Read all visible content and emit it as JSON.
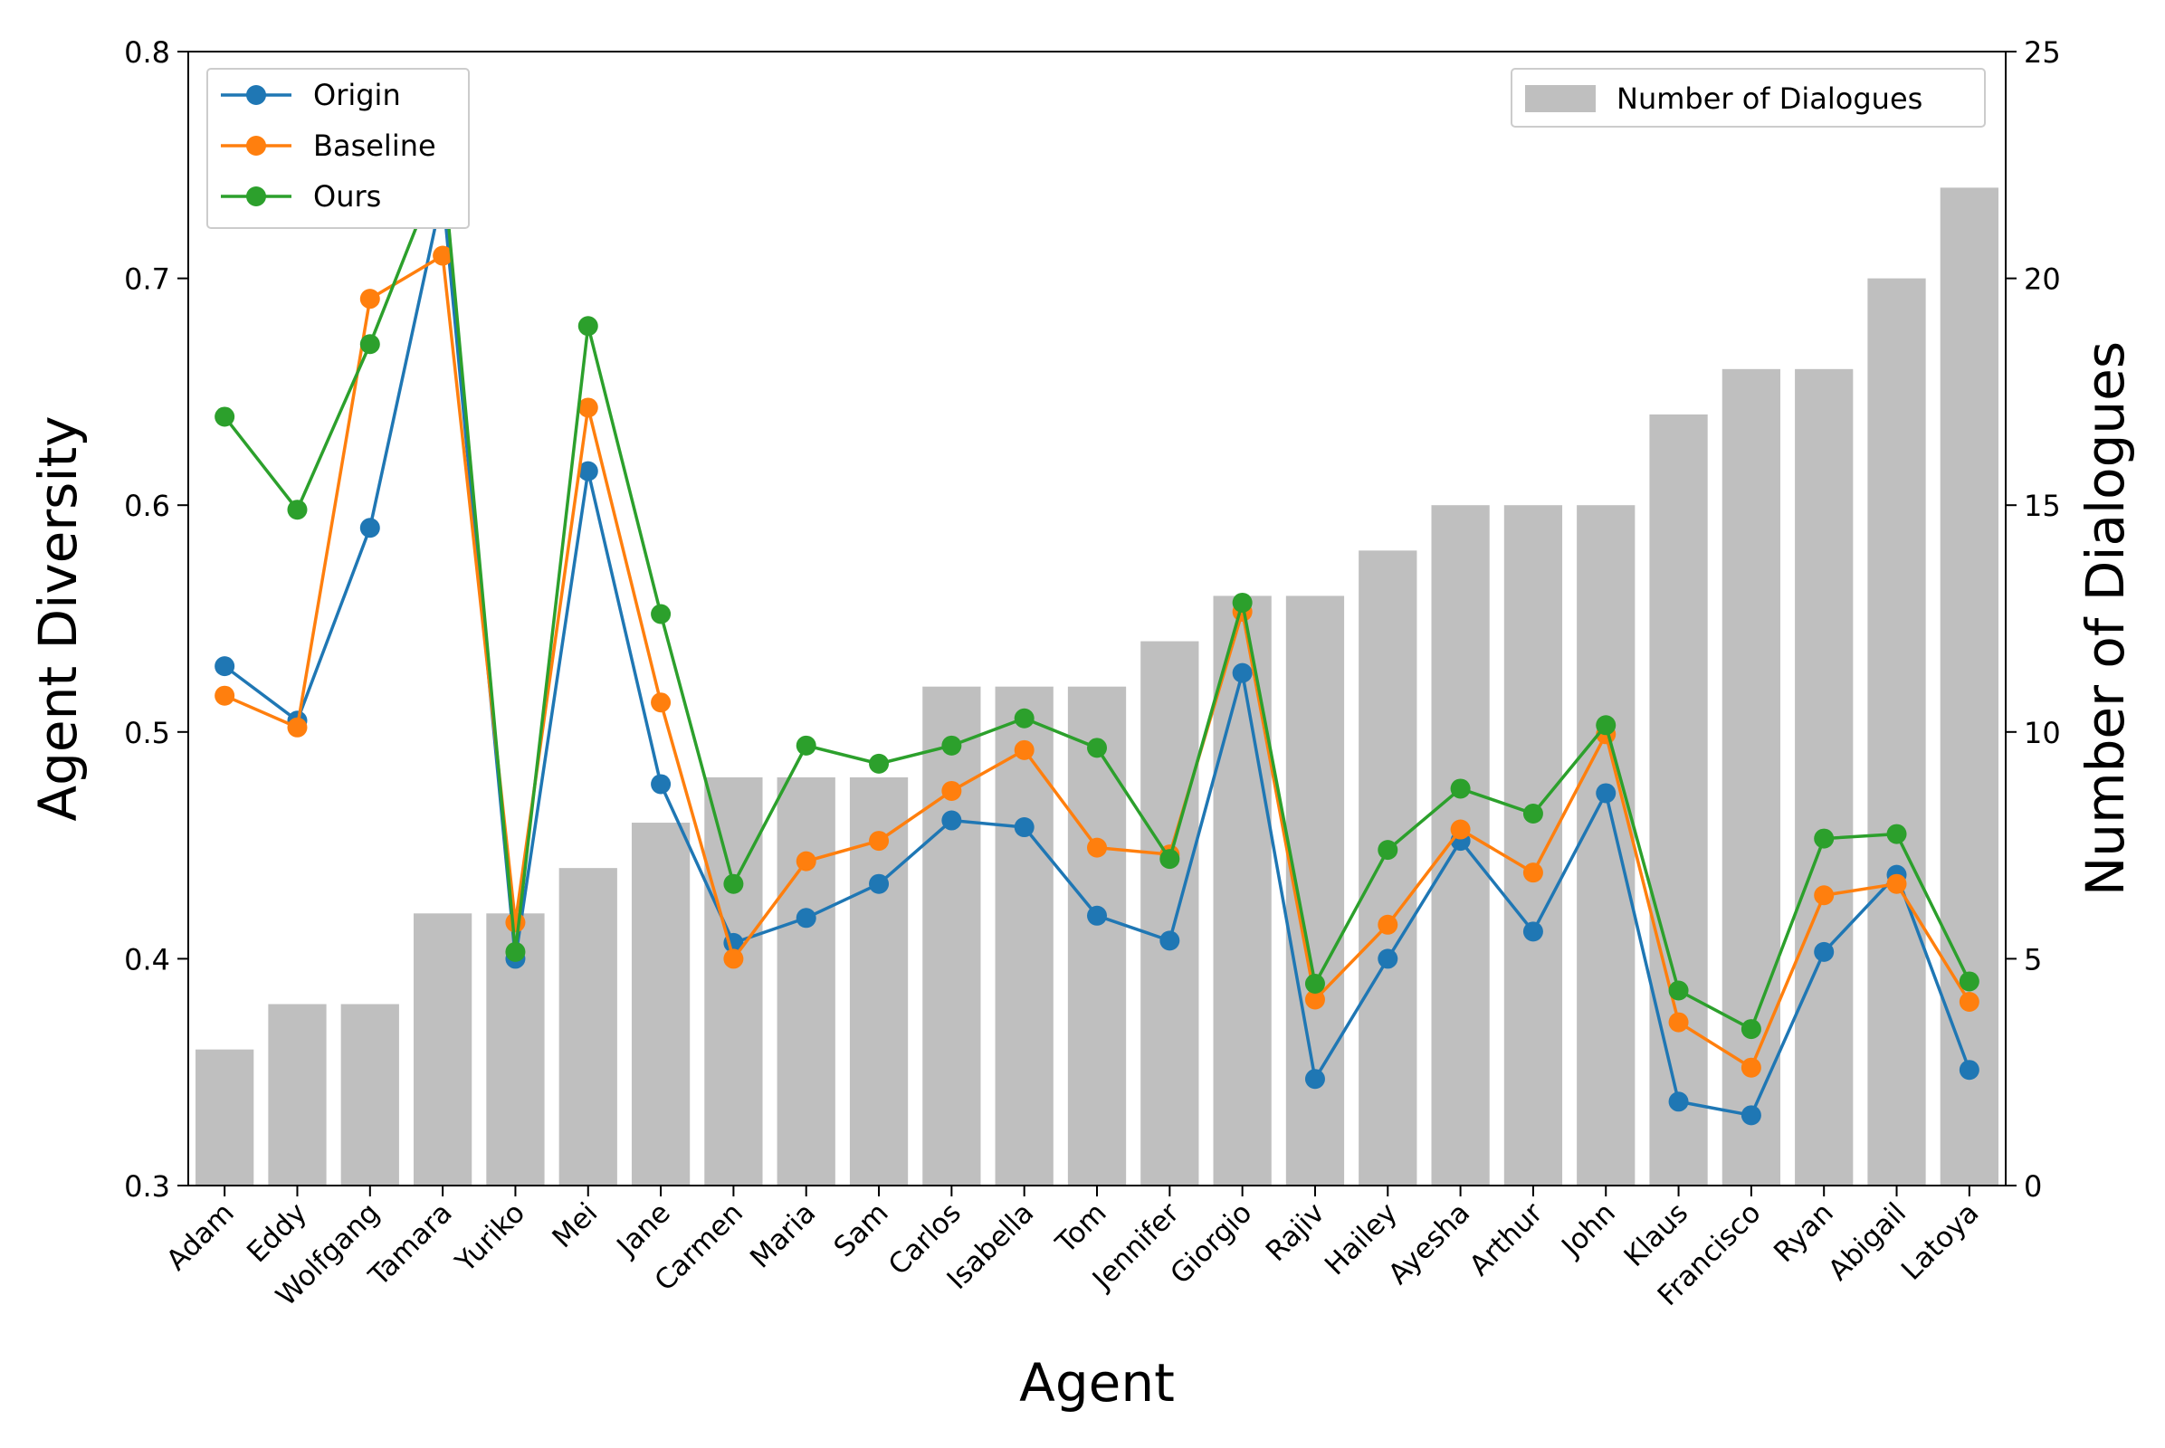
{
  "chart_data": {
    "type": "bar",
    "xlabel": "Agent",
    "ylabel_left": "Agent Diversity",
    "ylabel_right": "Number of Dialogues",
    "ylim_left": [
      0.3,
      0.8
    ],
    "ylim_right": [
      0,
      25
    ],
    "yticks_left": [
      "0.3",
      "0.4",
      "0.5",
      "0.6",
      "0.7",
      "0.8"
    ],
    "yticks_right": [
      "0",
      "5",
      "10",
      "15",
      "20",
      "25"
    ],
    "grid": false,
    "categories": [
      "Adam",
      "Eddy",
      "Wolfgang",
      "Tamara",
      "Yuriko",
      "Mei",
      "Jane",
      "Carmen",
      "Maria",
      "Sam",
      "Carlos",
      "Isabella",
      "Tom",
      "Jennifer",
      "Giorgio",
      "Rajiv",
      "Hailey",
      "Ayesha",
      "Arthur",
      "John",
      "Klaus",
      "Francisco",
      "Ryan",
      "Abigail",
      "Latoya"
    ],
    "bars": {
      "name": "Number of Dialogues",
      "axis": "right",
      "color": "#bfbfbf",
      "values": [
        3,
        4,
        4,
        6,
        6,
        7,
        8,
        9,
        9,
        9,
        11,
        11,
        11,
        12,
        13,
        13,
        14,
        15,
        15,
        15,
        17,
        18,
        18,
        20,
        22
      ]
    },
    "series": [
      {
        "name": "Origin",
        "axis": "left",
        "color": "#1f77b4",
        "values": [
          0.529,
          0.505,
          0.59,
          0.738,
          0.4,
          0.615,
          0.477,
          0.407,
          0.418,
          0.433,
          0.461,
          0.458,
          0.419,
          0.408,
          0.526,
          0.347,
          0.4,
          0.452,
          0.412,
          0.473,
          0.337,
          0.331,
          0.403,
          0.437,
          0.351
        ]
      },
      {
        "name": "Baseline",
        "axis": "left",
        "color": "#ff7f0e",
        "values": [
          0.516,
          0.502,
          0.691,
          0.71,
          0.416,
          0.643,
          0.513,
          0.4,
          0.443,
          0.452,
          0.474,
          0.492,
          0.449,
          0.446,
          0.553,
          0.382,
          0.415,
          0.457,
          0.438,
          0.499,
          0.372,
          0.352,
          0.428,
          0.433,
          0.381
        ]
      },
      {
        "name": "Ours",
        "axis": "left",
        "color": "#2ca02c",
        "values": [
          0.639,
          0.598,
          0.671,
          0.752,
          0.403,
          0.679,
          0.552,
          0.433,
          0.494,
          0.486,
          0.494,
          0.506,
          0.493,
          0.444,
          0.557,
          0.389,
          0.448,
          0.475,
          0.464,
          0.503,
          0.386,
          0.369,
          0.453,
          0.455,
          0.39
        ]
      }
    ],
    "legend_lines_position": "top-left",
    "legend_bars_position": "top-right"
  }
}
